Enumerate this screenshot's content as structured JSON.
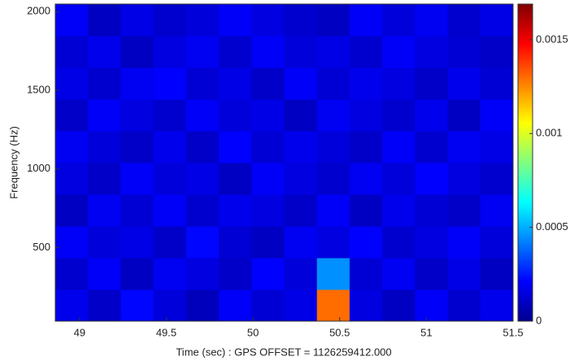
{
  "chart_data": {
    "type": "heatmap",
    "x_label": "Time (sec) : GPS OFFSET = 1126259412.000",
    "y_label": "Frequency (Hz)",
    "xlim": [
      48.86,
      51.5
    ],
    "xticks": [
      49,
      49.5,
      50,
      50.5,
      51,
      51.5
    ],
    "ylim": [
      32,
      2048
    ],
    "yticks": [
      500,
      1000,
      1500,
      2000
    ],
    "clim": [
      0,
      0.00169
    ],
    "colorbar_ticks": [
      0,
      0.0005,
      0.001,
      0.0015
    ],
    "colormap": "jet",
    "values": [
      [
        0.00018,
        0.00012,
        0.00022,
        0.00015,
        0.0001,
        0.0002,
        0.00014,
        0.00017,
        0.0013,
        0.00016,
        0.00011,
        0.0002,
        0.00013,
        0.00018
      ],
      [
        0.00013,
        0.0002,
        0.00011,
        0.00019,
        0.00016,
        0.00012,
        0.00021,
        0.00015,
        0.00045,
        0.00014,
        0.00019,
        0.00012,
        0.00017,
        0.00011
      ],
      [
        0.0002,
        0.00015,
        0.00017,
        0.00012,
        0.00022,
        0.00014,
        0.00011,
        0.00019,
        0.00016,
        0.00021,
        0.00013,
        0.00016,
        0.0002,
        0.00015
      ],
      [
        0.00011,
        0.00019,
        0.00014,
        0.0002,
        0.00013,
        0.00018,
        0.00016,
        0.00012,
        0.0002,
        0.00011,
        0.00018,
        0.00014,
        0.00012,
        0.00019
      ],
      [
        0.00016,
        0.00012,
        0.0002,
        0.00015,
        0.00017,
        0.00011,
        0.0002,
        0.00016,
        0.00013,
        0.00019,
        0.00015,
        0.00021,
        0.00016,
        0.00013
      ],
      [
        0.00019,
        0.00015,
        0.00012,
        0.00018,
        0.00012,
        0.00021,
        0.00014,
        0.00018,
        0.00015,
        0.00012,
        0.0002,
        0.00013,
        0.00019,
        0.00017
      ],
      [
        0.00012,
        0.0002,
        0.00016,
        0.00013,
        0.0002,
        0.00015,
        0.00017,
        0.00011,
        0.00019,
        0.00016,
        0.00013,
        0.00018,
        0.00011,
        0.0002
      ],
      [
        0.00017,
        0.00013,
        0.00019,
        0.00021,
        0.00014,
        0.00017,
        0.00012,
        0.0002,
        0.00014,
        0.00018,
        0.00016,
        0.00012,
        0.00018,
        0.00014
      ],
      [
        0.00014,
        0.00018,
        0.00011,
        0.00016,
        0.00019,
        0.00013,
        0.0002,
        0.00015,
        0.00017,
        0.00013,
        0.0002,
        0.00016,
        0.00014,
        0.00012
      ],
      [
        0.0002,
        0.00011,
        0.00017,
        0.00013,
        0.00015,
        0.0002,
        0.00016,
        0.00013,
        0.00011,
        0.0002,
        0.00015,
        0.00019,
        0.00013,
        0.00017
      ]
    ]
  }
}
